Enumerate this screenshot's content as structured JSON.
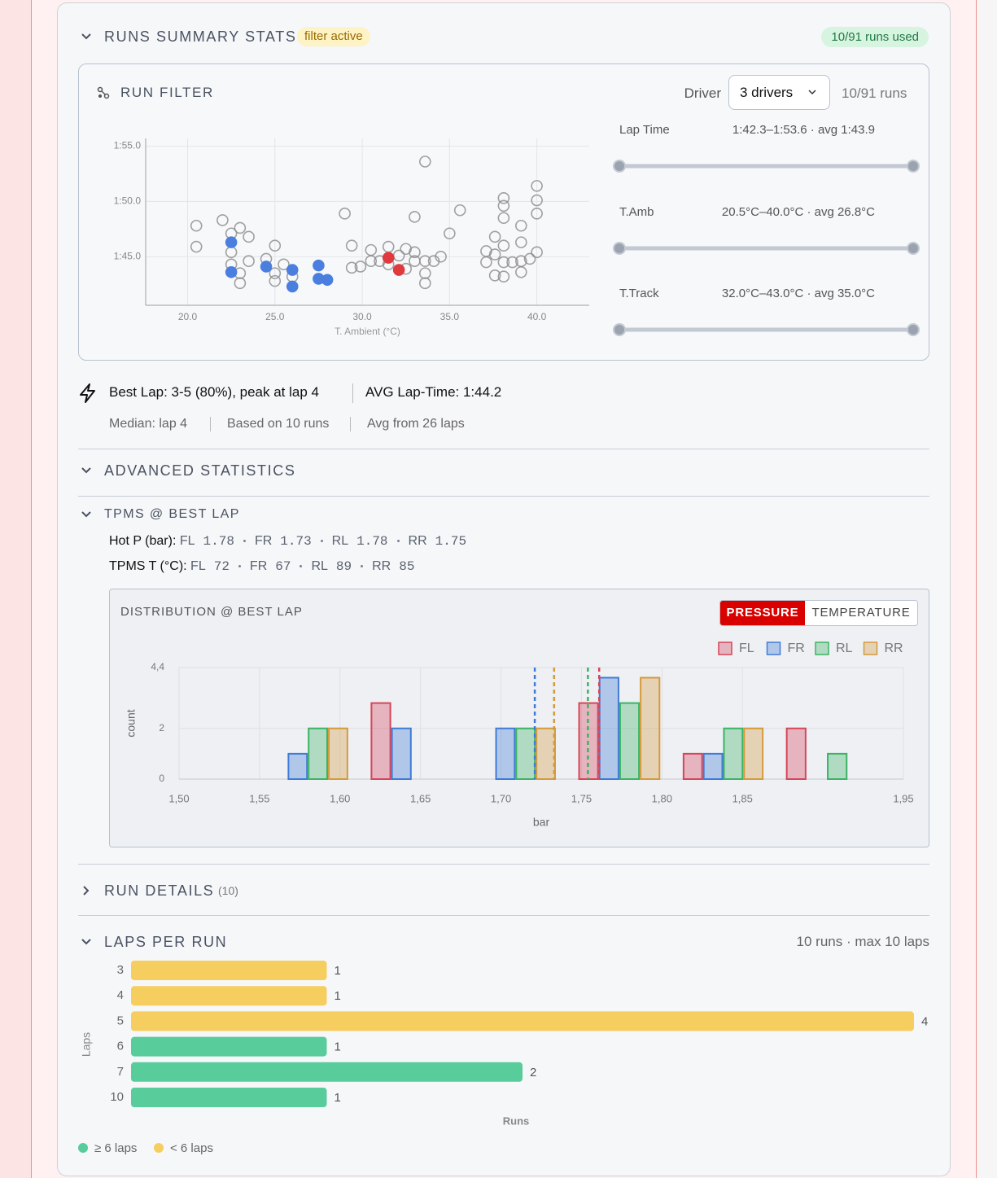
{
  "header": {
    "title": "RUNS SUMMARY STATS",
    "badge": "filter active",
    "runs_used": "10/91 runs used"
  },
  "run_filter": {
    "title": "RUN FILTER",
    "driver_label": "Driver",
    "driver_value": "3 drivers",
    "runs": "10/91 runs",
    "sliders": [
      {
        "label": "Lap Time",
        "range": "1:42.3–1:53.6 · avg 1:43.9"
      },
      {
        "label": "T.Amb",
        "range": "20.5°C–40.0°C · avg 26.8°C"
      },
      {
        "label": "T.Track",
        "range": "32.0°C–43.0°C · avg 35.0°C"
      }
    ]
  },
  "summary": {
    "best_lap": "Best Lap: 3-5 (80%), peak at lap 4",
    "avg_lap": "AVG Lap-Time: 1:44.2",
    "median": "Median: lap 4",
    "based_on": "Based on 10 runs",
    "avg_from": "Avg from 26 laps"
  },
  "sections": {
    "advanced": "ADVANCED STATISTICS",
    "tpms": "TPMS @ BEST LAP",
    "run_details": "RUN DETAILS",
    "run_details_count": "(10)"
  },
  "tpms": {
    "hot_p": {
      "label": "Hot P (bar):",
      "items": [
        {
          "name": "FL",
          "value": 1.78
        },
        {
          "name": "FR",
          "value": 1.73
        },
        {
          "name": "RL",
          "value": 1.78
        },
        {
          "name": "RR",
          "value": 1.75
        }
      ]
    },
    "temp": {
      "label": "TPMS T (°C):",
      "items": [
        {
          "name": "FL",
          "value": 72
        },
        {
          "name": "FR",
          "value": 67
        },
        {
          "name": "RL",
          "value": 89
        },
        {
          "name": "RR",
          "value": 85
        }
      ]
    }
  },
  "toggle": {
    "options": [
      "PRESSURE",
      "TEMPERATURE"
    ],
    "active": 0
  },
  "chart_data": [
    {
      "type": "scatter",
      "x_label": "T. Ambient (°C)",
      "xlim": [
        17.6,
        43.0
      ],
      "ylim": [
        100.6,
        115.7
      ],
      "xticks": [
        {
          "value": 20,
          "label": "20.0"
        },
        {
          "value": 25,
          "label": "25.0"
        },
        {
          "value": 30,
          "label": "30.0"
        },
        {
          "value": 35,
          "label": "35.0"
        },
        {
          "value": 40,
          "label": "40.0"
        }
      ],
      "yticks": [
        {
          "value": 105,
          "label": "1:45.0"
        },
        {
          "value": 110,
          "label": "1:50.0"
        },
        {
          "value": 115,
          "label": "1:55.0"
        }
      ],
      "grid": true,
      "series": [
        {
          "color": "#8a8a8a",
          "filled": false,
          "x": [
            20.5,
            20.5,
            22.0,
            22.5,
            23.0,
            23.5,
            22.5,
            22.5,
            23.0,
            23.0,
            23.5,
            24.5,
            25.0,
            25.0,
            25.0,
            25.5,
            26.0,
            29.0,
            29.4,
            29.4,
            29.9,
            30.5,
            30.5,
            31.0,
            31.5,
            31.5,
            32.1,
            32.5,
            32.5,
            33.0,
            33.0,
            33.0,
            33.6,
            33.6,
            33.6,
            33.6,
            34.1,
            34.5,
            35.0,
            35.6,
            37.1,
            37.1,
            37.6,
            37.6,
            37.6,
            38.1,
            38.1,
            38.1,
            38.1,
            38.1,
            38.1,
            38.6,
            39.1,
            39.1,
            39.1,
            39.1,
            39.6,
            40.0,
            40.0,
            40.0,
            40.0
          ],
          "values": [
            107.8,
            105.9,
            108.3,
            107.1,
            107.6,
            106.8,
            105.4,
            104.3,
            103.5,
            102.6,
            104.6,
            104.8,
            106.0,
            103.5,
            102.8,
            104.3,
            103.2,
            108.9,
            106.0,
            104.0,
            104.1,
            105.6,
            104.6,
            104.6,
            105.9,
            104.3,
            105.1,
            105.7,
            103.9,
            108.6,
            105.4,
            104.6,
            113.6,
            104.6,
            103.5,
            102.6,
            104.6,
            105.0,
            107.1,
            109.2,
            105.5,
            104.5,
            106.8,
            105.2,
            103.3,
            110.3,
            109.6,
            108.5,
            106.0,
            104.5,
            103.2,
            104.5,
            107.8,
            106.3,
            104.6,
            103.6,
            104.8,
            111.4,
            110.1,
            108.9,
            105.4
          ]
        },
        {
          "color": "#4a7fe0",
          "filled": true,
          "x": [
            22.5,
            22.5,
            24.5,
            26.0,
            26.0,
            27.5,
            27.5,
            28.0
          ],
          "values": [
            106.3,
            103.6,
            104.1,
            103.8,
            102.3,
            104.2,
            103.0,
            102.9
          ]
        },
        {
          "color": "#e0393e",
          "filled": true,
          "x": [
            31.5,
            32.1
          ],
          "values": [
            104.9,
            103.8
          ]
        }
      ]
    },
    {
      "type": "histogram",
      "title": "DISTRIBUTION @ BEST LAP",
      "x_label": "bar",
      "y_label": "count",
      "bins": [
        1.548,
        1.612,
        1.677,
        1.741,
        1.806,
        1.87,
        1.935
      ],
      "xlim": [
        1.5,
        1.95
      ],
      "ylim": [
        0,
        4.4
      ],
      "xticks": [
        {
          "value": 1.5,
          "label": "1,50"
        },
        {
          "value": 1.55,
          "label": "1,55"
        },
        {
          "value": 1.6,
          "label": "1,60"
        },
        {
          "value": 1.65,
          "label": "1,65"
        },
        {
          "value": 1.7,
          "label": "1,70"
        },
        {
          "value": 1.75,
          "label": "1,75"
        },
        {
          "value": 1.8,
          "label": "1,80"
        },
        {
          "value": 1.85,
          "label": "1,85"
        },
        {
          "value": 1.95,
          "label": "1,95"
        }
      ],
      "yticks": [
        0,
        2,
        {
          "value": 4.4,
          "label": "4,4"
        }
      ],
      "grid": true,
      "legend": "top-right",
      "series": [
        {
          "name": "FL",
          "color": "#d6455a",
          "values": [
            0,
            3,
            0,
            3,
            1,
            2
          ],
          "mean": 1.761
        },
        {
          "name": "FR",
          "color": "#3f7bd6",
          "values": [
            1,
            2,
            2,
            4,
            1,
            0
          ],
          "mean": 1.721
        },
        {
          "name": "RL",
          "color": "#3bb463",
          "values": [
            2,
            0,
            2,
            3,
            2,
            1
          ],
          "mean": 1.754
        },
        {
          "name": "RR",
          "color": "#d49a3c",
          "values": [
            2,
            0,
            2,
            4,
            2,
            0
          ],
          "mean": 1.733
        }
      ]
    },
    {
      "type": "hbar",
      "title": "LAPS PER RUN",
      "subtitle": "10 runs · max 10 laps",
      "x_label": "Runs",
      "y_label": "Laps",
      "categories": [
        "3",
        "4",
        "5",
        "6",
        "7",
        "10"
      ],
      "values": [
        1,
        1,
        4,
        1,
        2,
        1
      ],
      "colors": [
        "#f6cd5f",
        "#f6cd5f",
        "#f6cd5f",
        "#58cc9a",
        "#58cc9a",
        "#58cc9a"
      ],
      "xlim": [
        0,
        4
      ],
      "legend": [
        {
          "name": "≥ 6 laps",
          "color": "#58cc9a"
        },
        {
          "name": "< 6 laps",
          "color": "#f6cd5f"
        }
      ]
    }
  ]
}
